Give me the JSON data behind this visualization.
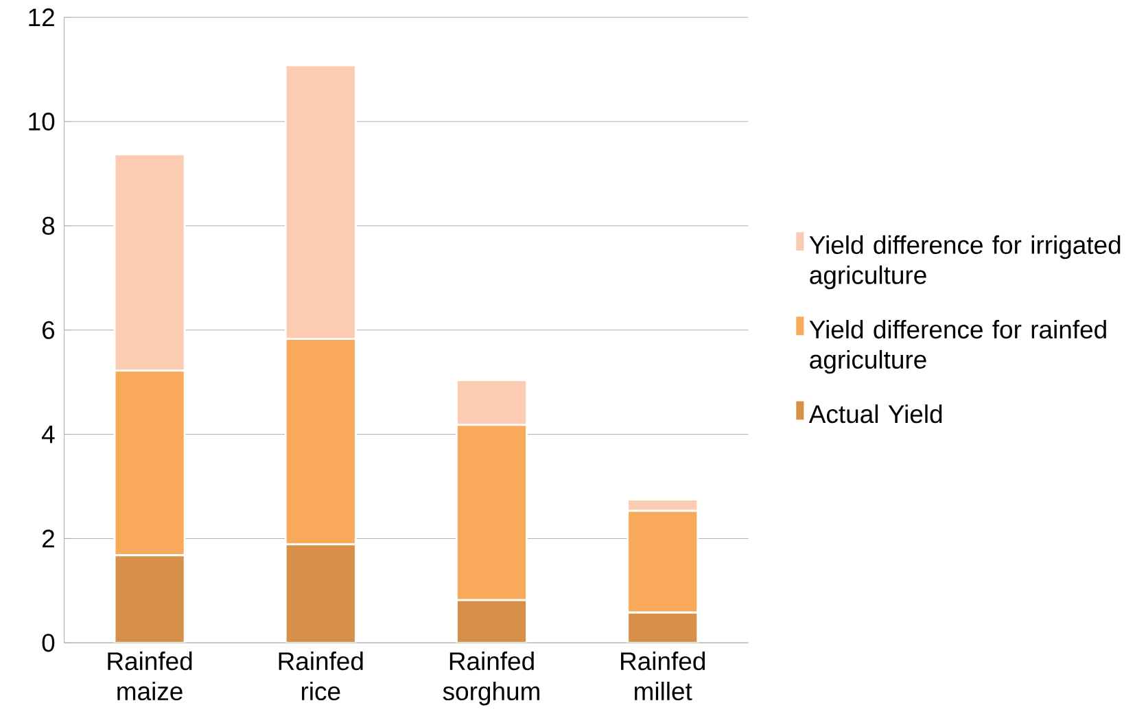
{
  "chart_data": {
    "type": "bar",
    "stacked": true,
    "categories": [
      "Rainfed maize",
      "Rainfed rice",
      "Rainfed sorghum",
      "Rainfed millet"
    ],
    "series": [
      {
        "name": "Actual Yield",
        "color": "#d79049",
        "values": [
          1.68,
          1.89,
          0.82,
          0.58
        ]
      },
      {
        "name": "Yield difference for rainfed agriculture",
        "color": "#f8a95a",
        "values": [
          3.54,
          3.94,
          3.36,
          1.95
        ]
      },
      {
        "name": "Yield difference for irrigated agriculture",
        "color": "#fbcbb2",
        "values": [
          4.15,
          5.25,
          0.86,
          0.22
        ]
      }
    ],
    "ylim": [
      0,
      12
    ],
    "yticks": [
      0,
      2,
      4,
      6,
      8,
      10,
      12
    ],
    "grid": "y",
    "legend": "right"
  }
}
